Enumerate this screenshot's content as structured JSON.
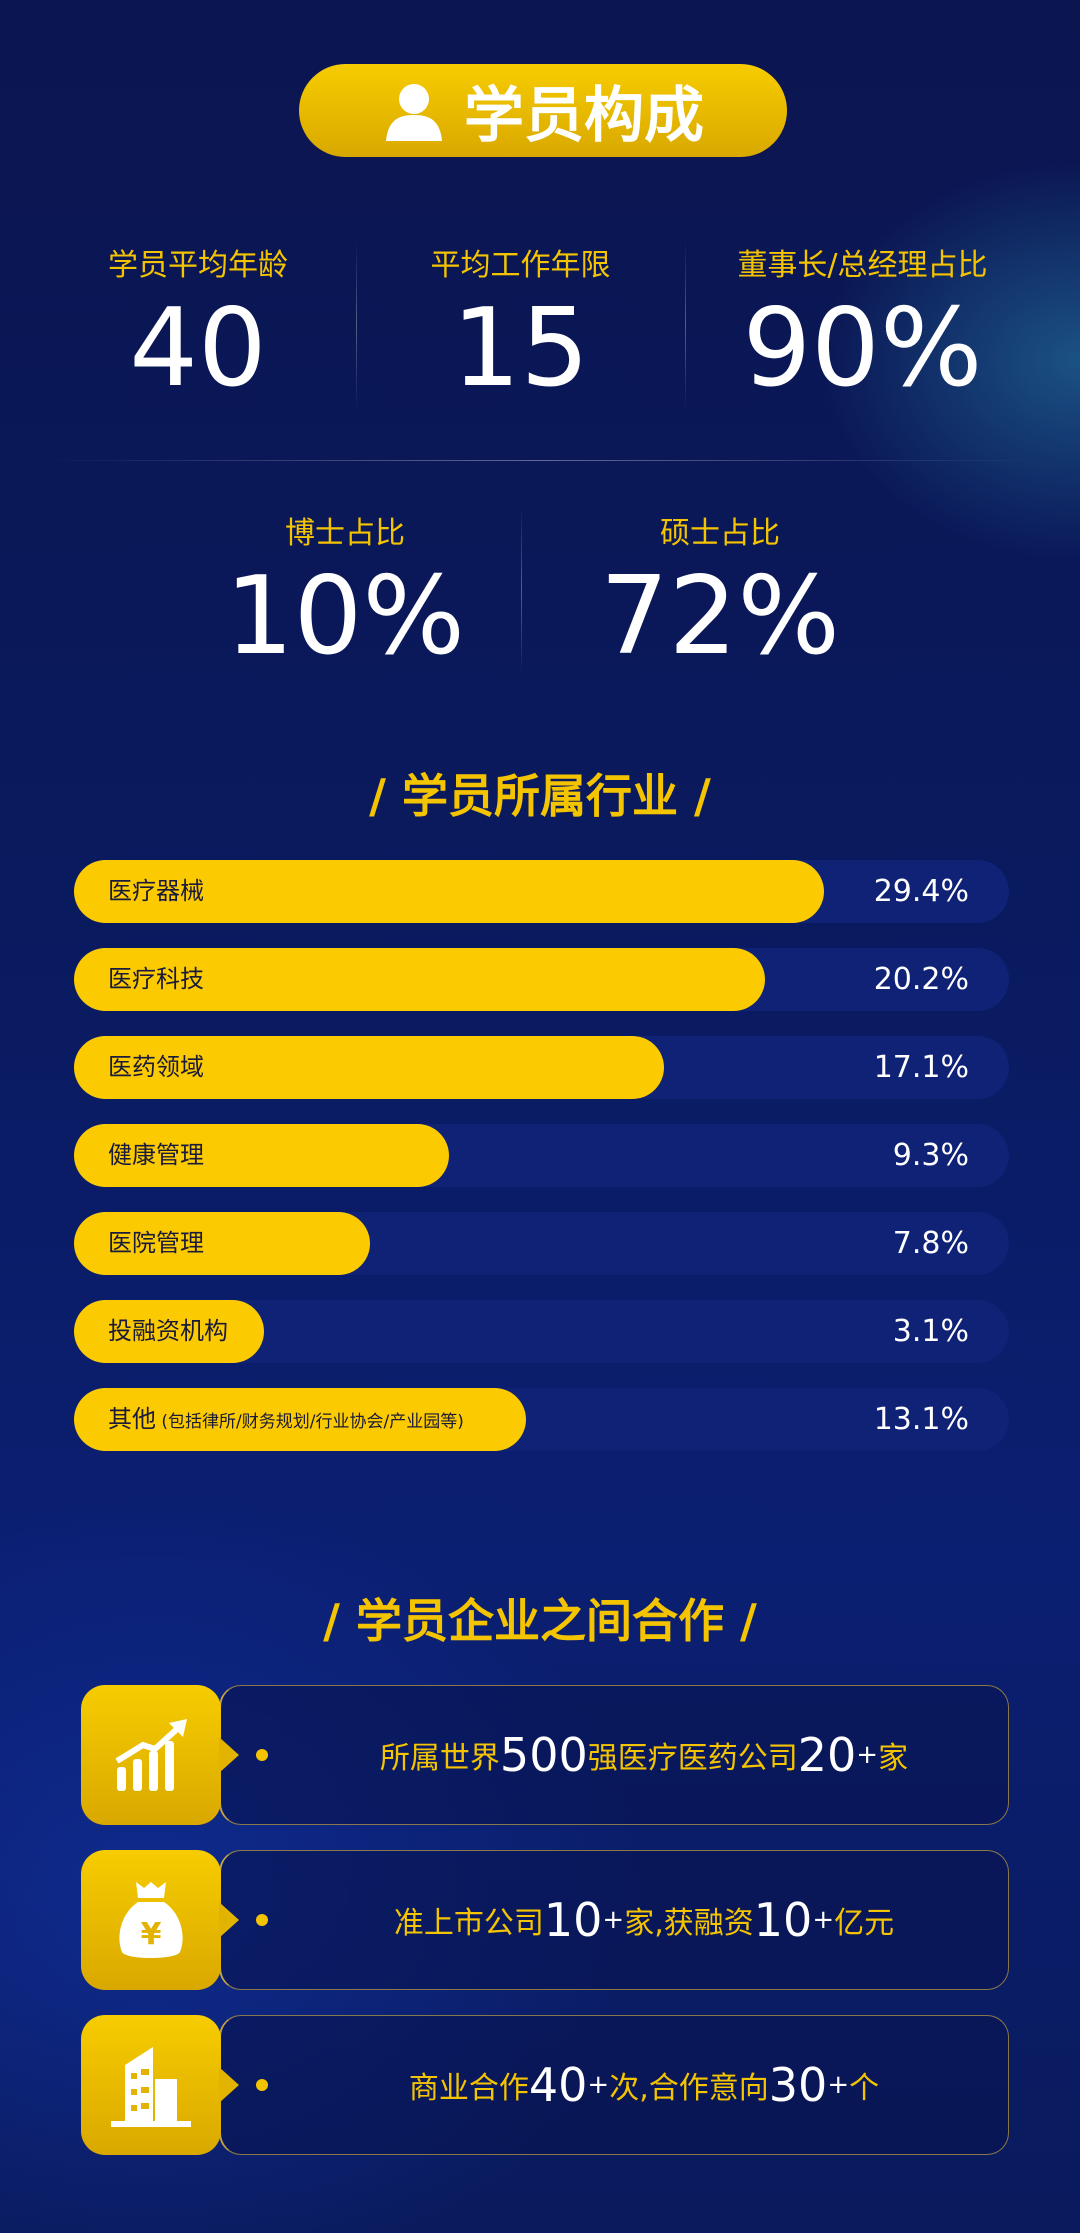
{
  "header": {
    "title": "学员构成",
    "icon": "user-icon"
  },
  "stats_row1": [
    {
      "label": "学员平均年龄",
      "value": "40"
    },
    {
      "label": "平均工作年限",
      "value": "15"
    },
    {
      "label": "董事长/总经理占比",
      "value": "90%"
    }
  ],
  "stats_row2": [
    {
      "label": "博士占比",
      "value": "10%"
    },
    {
      "label": "硕士占比",
      "value": "72%"
    }
  ],
  "industry": {
    "title": "/ 学员所属行业 /",
    "items": [
      {
        "label": "医疗器械",
        "note": "",
        "percent": "29.4%",
        "value": 29.4
      },
      {
        "label": "医疗科技",
        "note": "",
        "percent": "20.2%",
        "value": 20.2
      },
      {
        "label": "医药领域",
        "note": "",
        "percent": "17.1%",
        "value": 17.1
      },
      {
        "label": "健康管理",
        "note": "",
        "percent": "9.3%",
        "value": 9.3
      },
      {
        "label": "医院管理",
        "note": "",
        "percent": "7.8%",
        "value": 7.8
      },
      {
        "label": "投融资机构",
        "note": "",
        "percent": "3.1%",
        "value": 3.1
      },
      {
        "label": "其他",
        "note": "(包括律所/财务规划/行业协会/产业园等)",
        "percent": "13.1%",
        "value": 13.1
      }
    ]
  },
  "cooperation": {
    "title": "/ 学员企业之间合作 /",
    "cards": [
      {
        "icon": "growth-chart-icon",
        "parts": [
          {
            "t": "所属世界"
          },
          {
            "n": "500"
          },
          {
            "t": "强医疗医药公司"
          },
          {
            "n": "20",
            "s": "+"
          },
          {
            "t": "家"
          }
        ]
      },
      {
        "icon": "money-bag-icon",
        "parts": [
          {
            "t": "准上市公司"
          },
          {
            "n": "10",
            "s": "+"
          },
          {
            "t": "家,获融资"
          },
          {
            "n": "10",
            "s": "+"
          },
          {
            "t": "亿元"
          }
        ]
      },
      {
        "icon": "building-icon",
        "parts": [
          {
            "t": "商业合作"
          },
          {
            "n": "40",
            "s": "+"
          },
          {
            "t": "次,合作意向"
          },
          {
            "n": "30",
            "s": "+"
          },
          {
            "t": "个"
          }
        ]
      }
    ]
  },
  "colors": {
    "accent": "#f5c400",
    "background": "#0b1a5e"
  }
}
